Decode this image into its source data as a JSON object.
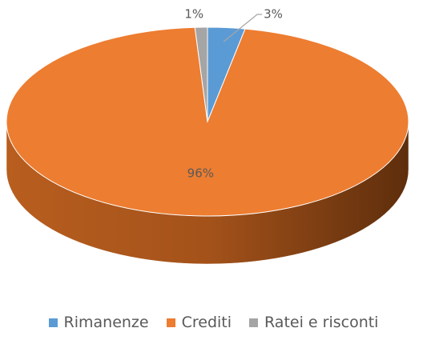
{
  "chart_data": {
    "type": "pie3d",
    "categories": [
      "Rimanenze",
      "Crediti",
      "Ratei e risconti"
    ],
    "values": [
      3,
      96,
      1
    ],
    "value_labels": [
      "3%",
      "96%",
      "1%"
    ],
    "colors": [
      "#5b9bd5",
      "#ed7d31",
      "#a5a5a5"
    ],
    "legend": "bottom"
  }
}
